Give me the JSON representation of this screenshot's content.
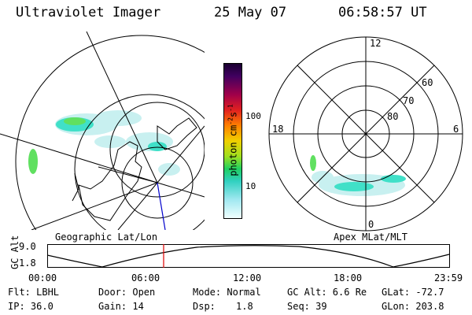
{
  "header": {
    "instrument": "Ultraviolet Imager",
    "date": "25 May 07",
    "time": "06:58:57 UT"
  },
  "colorbar": {
    "label": "photon cm",
    "label_sup1": "-2",
    "label_mid": "s",
    "label_sup2": "-1",
    "ticks": [
      "100",
      "10"
    ]
  },
  "polar_plot": {
    "mlt_labels": [
      "12",
      "18",
      "6",
      "0"
    ],
    "lat_labels": [
      "60",
      "70",
      "80"
    ]
  },
  "panel_labels": {
    "left": "Geographic Lat/Lon",
    "right": "Apex MLat/MLT"
  },
  "altitude_plot": {
    "ylabel": "GC Alt",
    "yticks": [
      "9.0",
      "1.8"
    ],
    "xticks": [
      "00:00",
      "06:00",
      "12:00",
      "18:00",
      "23:59"
    ]
  },
  "status": {
    "flt": "Flt: LBHL",
    "ip": "IP: 36.0",
    "door": "Door: Open",
    "gain": "Gain: 14",
    "mode": "Mode: Normal",
    "dsp_label": "Dsp:",
    "dsp_value": "1.8",
    "gcalt": "GC Alt: 6.6 Re",
    "seq": "Seq: 39",
    "glat": "GLat: -72.7",
    "glon": "GLon: 203.8"
  },
  "colors": {
    "marker": "#e00000",
    "meridian": "#0000cc",
    "aurora_low": "#c8f0f0",
    "aurora_mid": "#40e0c8",
    "aurora_high": "#60e060"
  }
}
